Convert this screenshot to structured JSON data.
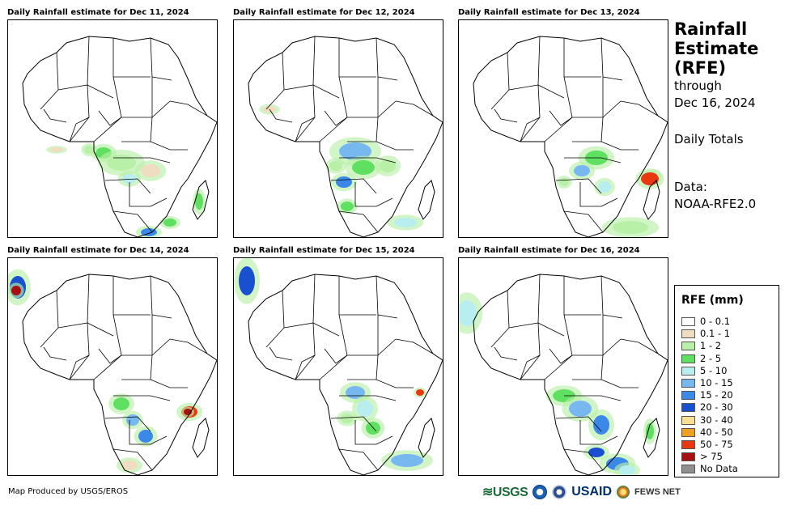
{
  "panels": [
    {
      "title": "Daily Rainfall estimate for Dec 11, 2024"
    },
    {
      "title": "Daily Rainfall estimate for Dec 12, 2024"
    },
    {
      "title": "Daily Rainfall estimate for Dec 13, 2024"
    },
    {
      "title": "Daily Rainfall estimate for Dec 14, 2024"
    },
    {
      "title": "Daily Rainfall estimate for Dec 15, 2024"
    },
    {
      "title": "Daily Rainfall estimate for Dec 16, 2024"
    }
  ],
  "heading": {
    "line1": "Rainfall",
    "line2": "Estimate",
    "line3": "(RFE)",
    "through_label": "through",
    "through_date": "Dec 16, 2024",
    "totals_label": "Daily Totals",
    "data_label": "Data:",
    "data_source": "NOAA-RFE2.0"
  },
  "legend": {
    "title": "RFE (mm)",
    "items": [
      {
        "label": "0 - 0.1",
        "color": "#ffffff"
      },
      {
        "label": "0.1 - 1",
        "color": "#f0dcc0"
      },
      {
        "label": "1 - 2",
        "color": "#b8f0a8"
      },
      {
        "label": "2 - 5",
        "color": "#60e060"
      },
      {
        "label": "5 - 10",
        "color": "#b8eef0"
      },
      {
        "label": "10 - 15",
        "color": "#78b8f0"
      },
      {
        "label": "15 - 20",
        "color": "#3a88e8"
      },
      {
        "label": "20 - 30",
        "color": "#1850d0"
      },
      {
        "label": "30 - 40",
        "color": "#f8e090"
      },
      {
        "label": "40 - 50",
        "color": "#f0a020"
      },
      {
        "label": "50 - 75",
        "color": "#e83810"
      },
      {
        "label": "> 75",
        "color": "#a81010"
      },
      {
        "label": "No Data",
        "color": "#909090"
      }
    ]
  },
  "footer": {
    "credit": "Map Produced by USGS/EROS",
    "logos": {
      "usgs": "USGS",
      "usaid": "USAID",
      "fews": "FEWS NET"
    }
  },
  "icons": {
    "noaa": "noaa-logo-icon",
    "dhs": "dhs-seal-icon",
    "fews": "fews-globe-icon"
  }
}
